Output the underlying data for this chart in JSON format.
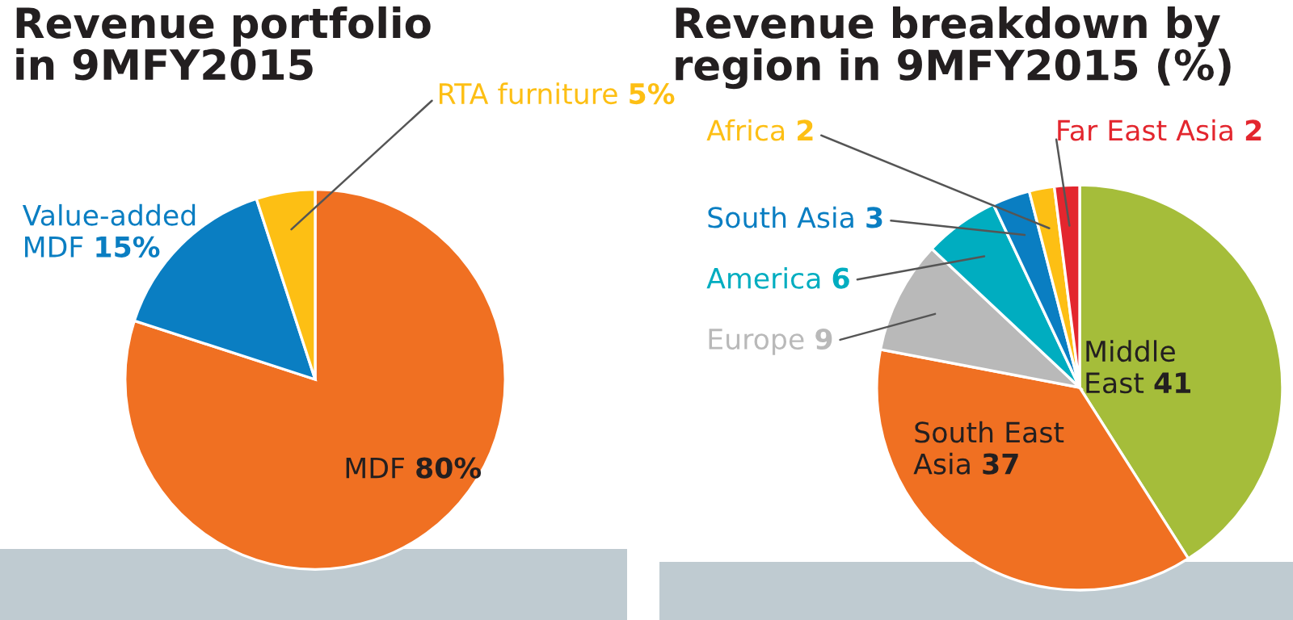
{
  "chart_data": [
    {
      "type": "pie",
      "title": "Revenue portfolio\nin 9MFY2015",
      "categories": [
        "MDF",
        "Value-added MDF",
        "RTA furniture"
      ],
      "values": [
        80,
        15,
        5
      ],
      "colors": [
        "#f07022",
        "#0a7ec2",
        "#fdbf14"
      ],
      "value_labels": [
        "80%",
        "15%",
        "5%"
      ]
    },
    {
      "type": "pie",
      "title": "Revenue breakdown by\nregion in 9MFY2015 (%)",
      "categories": [
        "Middle East",
        "South East Asia",
        "Europe",
        "America",
        "South Asia",
        "Africa",
        "Far East Asia"
      ],
      "values": [
        41,
        37,
        9,
        6,
        3,
        2,
        2
      ],
      "colors": [
        "#a5bd3a",
        "#f07022",
        "#b9b9b9",
        "#00adc0",
        "#0a7ec2",
        "#fdbf14",
        "#e3262e"
      ],
      "value_labels": [
        "41",
        "37",
        "9",
        "6",
        "3",
        "2",
        "2"
      ]
    }
  ]
}
